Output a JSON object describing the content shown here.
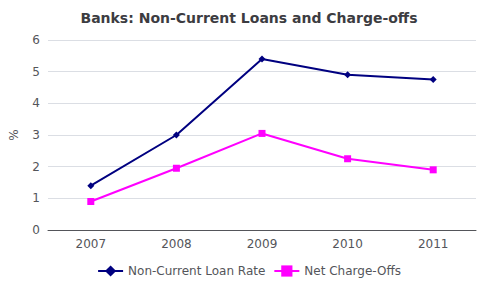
{
  "chart_data": {
    "type": "line",
    "title": "Banks: Non-Current Loans and Charge-offs",
    "categories": [
      "2007",
      "2008",
      "2009",
      "2010",
      "2011"
    ],
    "series": [
      {
        "name": "Non-Current Loan Rate",
        "color": "#000080",
        "marker": "diamond",
        "values": [
          1.4,
          3.0,
          5.4,
          4.9,
          4.75
        ]
      },
      {
        "name": "Net Charge-Offs",
        "color": "#FF00FF",
        "marker": "square",
        "values": [
          0.9,
          1.95,
          3.05,
          2.25,
          1.9
        ]
      }
    ],
    "ylabel": "%",
    "ylim": [
      0,
      6
    ],
    "yticks": [
      0,
      1,
      2,
      3,
      4,
      5,
      6
    ],
    "grid": true,
    "legend": "bottom"
  }
}
